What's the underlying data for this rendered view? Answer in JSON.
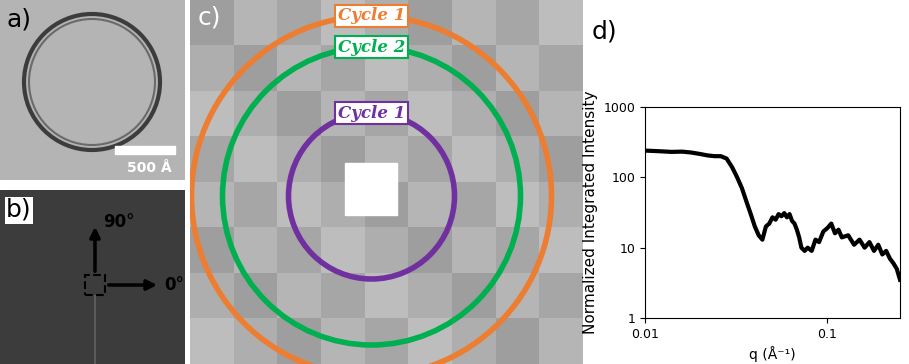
{
  "panels": {
    "a": {
      "label": "a)",
      "scale_bar": "500 Å"
    },
    "b": {
      "label": "b)",
      "arrow_up": "90°",
      "arrow_right": "0°"
    },
    "c": {
      "label": "c)",
      "circles": [
        {
          "text": "Cycle 1",
          "color": "#ED7D31"
        },
        {
          "text": "Cycle 2",
          "color": "#00B050"
        },
        {
          "text": "Cycle 1",
          "color": "#7030A0"
        }
      ]
    },
    "d": {
      "label": "d)"
    }
  },
  "chart_data": {
    "type": "line",
    "log": true,
    "color": "#000000",
    "xlabel": "q (Å⁻¹)",
    "ylabel": "Normalized Integrated Intensity",
    "xlim": [
      0.01,
      0.25
    ],
    "ylim": [
      1,
      1000
    ],
    "xticks": [
      0.01,
      0.1
    ],
    "yticks": [
      1,
      10,
      100,
      1000
    ],
    "x": [
      0.01,
      0.012,
      0.014,
      0.016,
      0.018,
      0.02,
      0.022,
      0.024,
      0.026,
      0.028,
      0.03,
      0.032,
      0.034,
      0.036,
      0.038,
      0.04,
      0.042,
      0.044,
      0.046,
      0.048,
      0.05,
      0.052,
      0.054,
      0.056,
      0.058,
      0.06,
      0.062,
      0.064,
      0.066,
      0.068,
      0.07,
      0.072,
      0.075,
      0.078,
      0.082,
      0.086,
      0.09,
      0.095,
      0.1,
      0.105,
      0.11,
      0.115,
      0.12,
      0.13,
      0.14,
      0.15,
      0.16,
      0.17,
      0.18,
      0.19,
      0.2,
      0.21,
      0.22,
      0.23,
      0.24,
      0.25
    ],
    "values": [
      240,
      235,
      230,
      232,
      225,
      215,
      205,
      200,
      200,
      185,
      140,
      100,
      70,
      45,
      30,
      20,
      15,
      13,
      20,
      22,
      27,
      25,
      30,
      28,
      31,
      27,
      30,
      24,
      22,
      18,
      14,
      10,
      9,
      10,
      9,
      13,
      12,
      17,
      19,
      22,
      16,
      18,
      14,
      15,
      11,
      13,
      10,
      12,
      9,
      11,
      8,
      9,
      7,
      6,
      5,
      3.5
    ]
  }
}
